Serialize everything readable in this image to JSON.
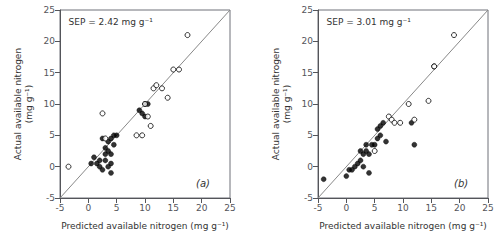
{
  "chart_data": [
    {
      "type": "scatter",
      "xlabel": "Predicted available nitrogen (mg g⁻¹)",
      "ylabel": "Actual available nitrogen\n(mg g⁻¹)",
      "annotations": [
        "SEP = 2.42 mg g⁻¹",
        "(a)"
      ],
      "xlim": [
        -5,
        25
      ],
      "ylim": [
        -5,
        25
      ],
      "xticks": [
        -5,
        0,
        5,
        10,
        15,
        20,
        25
      ],
      "yticks": [
        -5,
        0,
        5,
        10,
        15,
        20,
        25
      ],
      "grid": false,
      "series": [
        {
          "type": "line",
          "color": "#888888",
          "x": [
            -5,
            25
          ],
          "values": [
            -5,
            25
          ]
        },
        {
          "type": "scatter",
          "marker": "filled",
          "color": "#000000",
          "x": [
            0.5,
            1.0,
            1.5,
            2.0,
            2.0,
            2.5,
            2.5,
            3.0,
            3.0,
            3.0,
            3.5,
            3.5,
            3.5,
            4.0,
            4.0,
            4.0,
            4.0,
            4.5,
            4.5,
            5.0,
            9.0,
            9.5,
            10.0,
            10.0,
            10.5
          ],
          "values": [
            0.5,
            1.5,
            0.5,
            0.0,
            1.0,
            -0.5,
            4.5,
            1.0,
            2.0,
            3.0,
            0.0,
            2.5,
            4.0,
            -1.0,
            0.5,
            2.0,
            4.5,
            3.5,
            5.0,
            5.0,
            9.0,
            8.5,
            10.0,
            8.0,
            10.0
          ]
        },
        {
          "type": "scatter",
          "marker": "open",
          "color": "#000000",
          "x": [
            -3.5,
            2.5,
            3.0,
            8.5,
            9.5,
            10.0,
            10.5,
            11.0,
            11.5,
            12.0,
            13.0,
            14.0,
            15.0,
            16.0,
            17.5
          ],
          "values": [
            0.0,
            8.5,
            4.5,
            5.0,
            5.0,
            10.0,
            8.0,
            6.5,
            12.5,
            13.0,
            12.5,
            11.0,
            15.5,
            15.5,
            21.0
          ]
        }
      ]
    },
    {
      "type": "scatter",
      "xlabel": "Predicted available nitrogen (mg g⁻¹)",
      "ylabel": "Actual available nitrogen\n(mg g⁻¹)",
      "annotations": [
        "SEP = 3.01 mg g⁻¹",
        "(b)"
      ],
      "xlim": [
        -5,
        25
      ],
      "ylim": [
        -5,
        25
      ],
      "xticks": [
        -5,
        0,
        5,
        10,
        15,
        20,
        25
      ],
      "yticks": [
        -5,
        0,
        5,
        10,
        15,
        20,
        25
      ],
      "grid": false,
      "series": [
        {
          "type": "line",
          "color": "#888888",
          "x": [
            -5,
            25
          ],
          "values": [
            -5,
            25
          ]
        },
        {
          "type": "scatter",
          "marker": "filled",
          "color": "#000000",
          "x": [
            -4.0,
            0.0,
            0.5,
            1.0,
            1.5,
            2.0,
            2.5,
            2.5,
            3.0,
            3.0,
            3.5,
            3.5,
            4.0,
            4.0,
            4.5,
            5.0,
            5.5,
            5.5,
            6.0,
            6.0,
            6.5,
            7.0,
            11.5,
            12.0
          ],
          "values": [
            -2.0,
            -1.5,
            -0.5,
            -0.5,
            0.0,
            0.5,
            1.0,
            2.5,
            0.0,
            2.0,
            2.5,
            3.5,
            -1.0,
            2.0,
            3.5,
            3.5,
            4.5,
            6.0,
            5.0,
            6.5,
            7.0,
            4.0,
            7.0,
            3.5
          ]
        },
        {
          "type": "scatter",
          "marker": "open",
          "color": "#000000",
          "x": [
            5.0,
            7.5,
            8.0,
            8.5,
            9.5,
            11.0,
            12.0,
            14.5,
            15.5,
            15.5,
            19.0
          ],
          "values": [
            2.5,
            8.0,
            7.5,
            7.0,
            7.0,
            10.0,
            7.5,
            10.5,
            16.0,
            16.0,
            21.0
          ]
        }
      ]
    }
  ]
}
